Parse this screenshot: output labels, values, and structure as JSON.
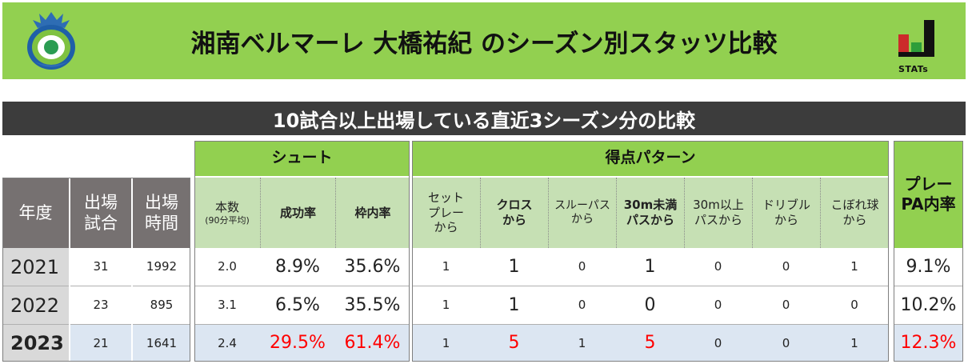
{
  "header": {
    "title": "湘南ベルマーレ 大橋祐紀 のシーズン別スタッツ比較",
    "stats_logo_text": "STATs",
    "colors": {
      "header_bg": "#92d050",
      "subtitle_bg": "#3c3c3c",
      "highlight_red": "#ff0000"
    }
  },
  "subtitle": "10試合以上出場している直近3シーズン分の比較",
  "table": {
    "groups": {
      "shoot": "シュート",
      "pattern": "得点パターン"
    },
    "headers": {
      "year": "年度",
      "games": "出場\n試合",
      "minutes": "出場\n時間",
      "shots": "本数",
      "shots_sub": "(90分平均)",
      "success": "成功率",
      "on_target": "枠内率",
      "setplay": "セット\nプレー\nから",
      "cross": "クロス\nから",
      "through": "スルーパス\nから",
      "pass_u30": "30m未満\nパスから",
      "pass_o30": "30m以上\nパスから",
      "dribble": "ドリブル\nから",
      "loose": "こぼれ球\nから",
      "pa_rate": "プレー\nPA内率"
    },
    "rows": [
      {
        "year": "2021",
        "games": "31",
        "minutes": "1992",
        "shots": "2.0",
        "success": "8.9%",
        "on_target": "35.6%",
        "setplay": "1",
        "cross": "1",
        "through": "0",
        "pass_u30": "1",
        "pass_o30": "0",
        "dribble": "0",
        "loose": "1",
        "pa_rate": "9.1%"
      },
      {
        "year": "2022",
        "games": "23",
        "minutes": "895",
        "shots": "3.1",
        "success": "6.5%",
        "on_target": "35.5%",
        "setplay": "1",
        "cross": "1",
        "through": "0",
        "pass_u30": "0",
        "pass_o30": "0",
        "dribble": "0",
        "loose": "0",
        "pa_rate": "10.2%"
      },
      {
        "year": "2023",
        "games": "21",
        "minutes": "1641",
        "shots": "2.4",
        "success": "29.5%",
        "on_target": "61.4%",
        "setplay": "1",
        "cross": "5",
        "through": "1",
        "pass_u30": "5",
        "pass_o30": "0",
        "dribble": "0",
        "loose": "1",
        "pa_rate": "12.3%"
      }
    ]
  }
}
